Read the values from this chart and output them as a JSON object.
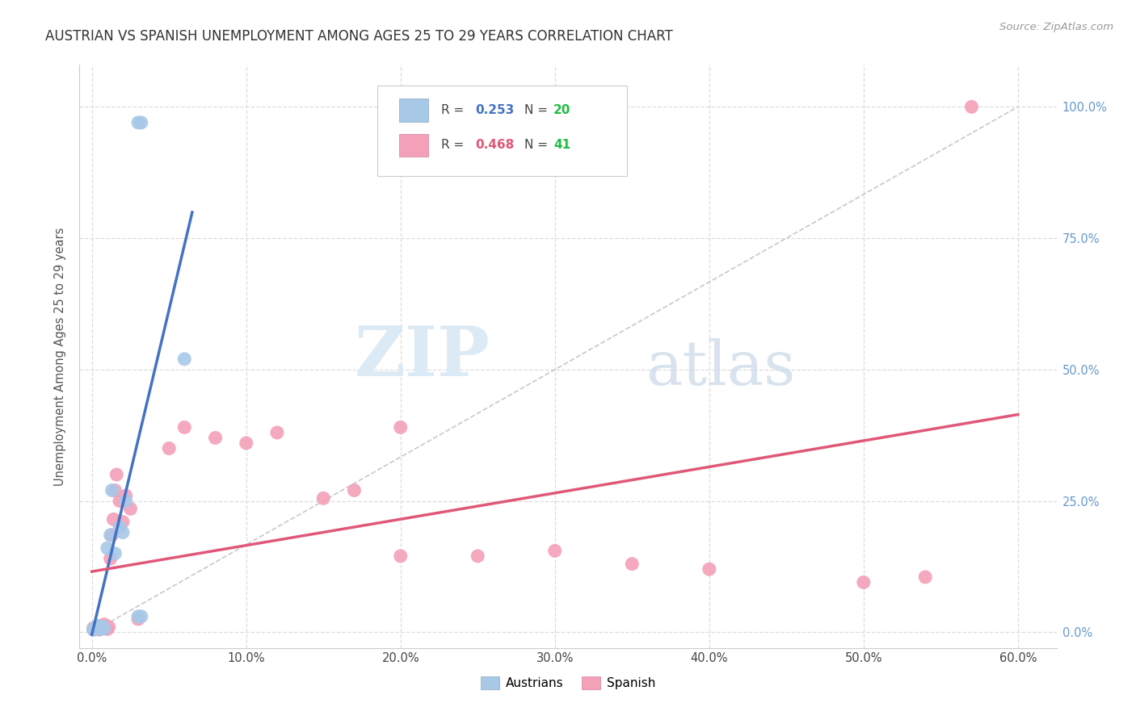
{
  "title": "AUSTRIAN VS SPANISH UNEMPLOYMENT AMONG AGES 25 TO 29 YEARS CORRELATION CHART",
  "source": "Source: ZipAtlas.com",
  "xlabel_ticks": [
    "0.0%",
    "10.0%",
    "20.0%",
    "30.0%",
    "40.0%",
    "50.0%",
    "60.0%"
  ],
  "ylabel_ticks": [
    "0.0%",
    "25.0%",
    "50.0%",
    "75.0%",
    "100.0%"
  ],
  "xlabel_vals": [
    0.0,
    0.1,
    0.2,
    0.3,
    0.4,
    0.5,
    0.6
  ],
  "ylabel_vals": [
    0.0,
    0.25,
    0.5,
    0.75,
    1.0
  ],
  "xlim": [
    -0.008,
    0.625
  ],
  "ylim": [
    -0.03,
    1.08
  ],
  "ylabel": "Unemployment Among Ages 25 to 29 years",
  "legend_austrians": "Austrians",
  "legend_spanish": "Spanish",
  "R_austrians": 0.253,
  "N_austrians": 20,
  "R_spanish": 0.468,
  "N_spanish": 41,
  "color_austrians": "#A8C8E8",
  "color_spanish": "#F4A0B8",
  "trendline_color_austrians": "#4472C4",
  "trendline_color_spanish": "#E05878",
  "diagonal_color": "#BBBBBB",
  "background_color": "#FFFFFF",
  "grid_color": "#DDDDDD",
  "watermark_zip": "ZIP",
  "watermark_atlas": "atlas",
  "tick_color_right": "#6699CC",
  "austrians_x": [
    0.001,
    0.002,
    0.003,
    0.004,
    0.005,
    0.006,
    0.007,
    0.008,
    0.01,
    0.012,
    0.013,
    0.015,
    0.018,
    0.02,
    0.022,
    0.03,
    0.032,
    0.06,
    0.03,
    0.032
  ],
  "austrians_y": [
    0.005,
    0.008,
    0.01,
    0.012,
    0.006,
    0.009,
    0.011,
    0.007,
    0.16,
    0.185,
    0.27,
    0.15,
    0.2,
    0.19,
    0.25,
    0.03,
    0.03,
    0.52,
    0.97,
    0.97
  ],
  "spanish_x": [
    0.001,
    0.001,
    0.002,
    0.003,
    0.003,
    0.004,
    0.004,
    0.005,
    0.005,
    0.006,
    0.007,
    0.008,
    0.009,
    0.01,
    0.011,
    0.012,
    0.013,
    0.014,
    0.015,
    0.016,
    0.018,
    0.02,
    0.022,
    0.025,
    0.03,
    0.05,
    0.06,
    0.08,
    0.1,
    0.12,
    0.15,
    0.17,
    0.2,
    0.2,
    0.25,
    0.3,
    0.35,
    0.4,
    0.5,
    0.54,
    0.57
  ],
  "spanish_y": [
    0.005,
    0.008,
    0.006,
    0.007,
    0.01,
    0.008,
    0.012,
    0.005,
    0.009,
    0.01,
    0.012,
    0.015,
    0.008,
    0.006,
    0.01,
    0.14,
    0.185,
    0.215,
    0.27,
    0.3,
    0.25,
    0.21,
    0.26,
    0.235,
    0.025,
    0.35,
    0.39,
    0.37,
    0.36,
    0.38,
    0.255,
    0.27,
    0.39,
    0.145,
    0.145,
    0.155,
    0.13,
    0.12,
    0.095,
    0.105,
    1.0
  ]
}
